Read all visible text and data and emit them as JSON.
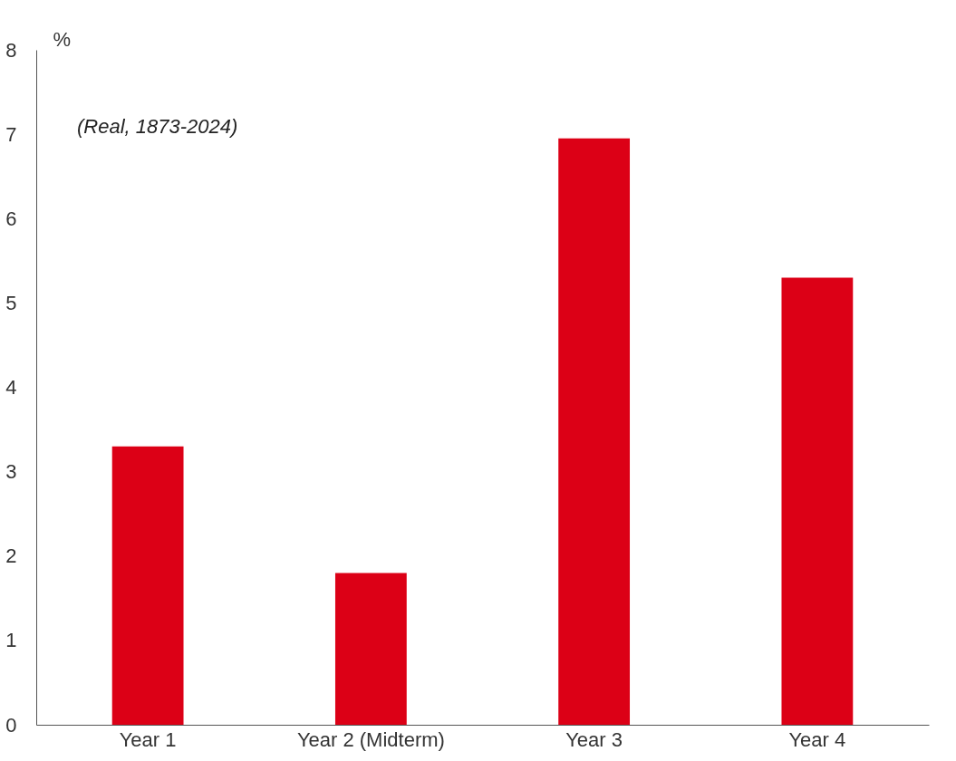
{
  "chart_data": {
    "type": "bar",
    "ylabel": "%",
    "categories": [
      "Year 1",
      "Year 2 (Midterm)",
      "Year 3",
      "Year 4"
    ],
    "values": [
      3.3,
      1.8,
      6.95,
      5.3
    ],
    "color": "#dc0016",
    "ylim": [
      0,
      8
    ],
    "yticks": [
      0,
      1,
      2,
      3,
      4,
      5,
      6,
      7,
      8
    ],
    "grid": false,
    "annotations": [
      "(Real, 1873-2024)"
    ]
  }
}
